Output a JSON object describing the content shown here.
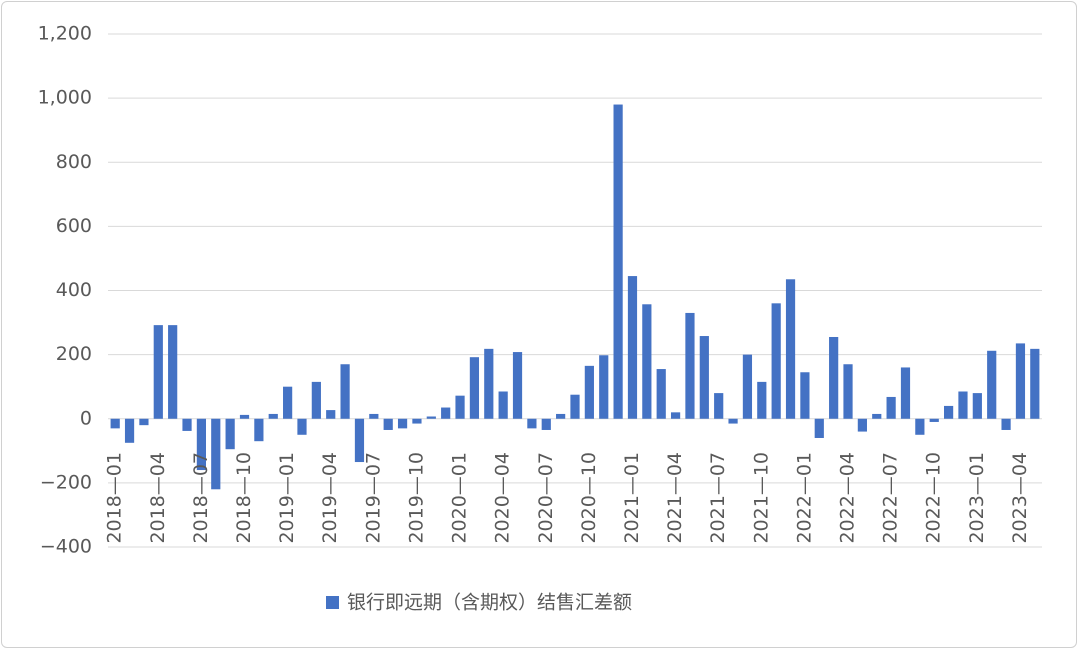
{
  "chart_data": {
    "type": "bar",
    "categories": [
      "2018—01",
      null,
      null,
      "2018—04",
      null,
      null,
      "2018—07",
      null,
      null,
      "2018—10",
      null,
      null,
      "2019—01",
      null,
      null,
      "2019—04",
      null,
      null,
      "2019—07",
      null,
      null,
      "2019—10",
      null,
      null,
      "2020—01",
      null,
      null,
      "2020—04",
      null,
      null,
      "2020—07",
      null,
      null,
      "2020—10",
      null,
      null,
      "2021—01",
      null,
      null,
      "2021—04",
      null,
      null,
      "2021—07",
      null,
      null,
      "2021—10",
      null,
      null,
      "2022—01",
      null,
      null,
      "2022—04",
      null,
      null,
      "2022—07",
      null,
      null,
      "2022—10",
      null,
      null,
      "2023—01",
      null,
      null,
      "2023—04",
      null
    ],
    "series": [
      {
        "name": "银行即远期（含期权）结售汇差额",
        "color": "#4472c4",
        "values": [
          -30,
          -75,
          -20,
          292,
          292,
          -38,
          -160,
          -220,
          -95,
          12,
          -70,
          15,
          100,
          -50,
          115,
          27,
          170,
          -135,
          15,
          -35,
          -30,
          -15,
          7,
          35,
          72,
          192,
          218,
          85,
          208,
          -30,
          -35,
          15,
          75,
          165,
          198,
          980,
          445,
          357,
          155,
          20,
          330,
          258,
          80,
          -15,
          200,
          115,
          360,
          435,
          145,
          -60,
          255,
          170,
          -40,
          15,
          68,
          160,
          -50,
          -10,
          40,
          85,
          80,
          212,
          -35,
          235,
          218
        ]
      }
    ],
    "ylim": [
      -400,
      1200
    ],
    "yticks": [
      {
        "value": -400,
        "label": "−400"
      },
      {
        "value": -200,
        "label": "−200"
      },
      0,
      200,
      400,
      600,
      800,
      {
        "value": 1000,
        "label": "1,000"
      },
      {
        "value": 1200,
        "label": "1,200"
      }
    ],
    "grid": true,
    "legend": "bottom"
  }
}
